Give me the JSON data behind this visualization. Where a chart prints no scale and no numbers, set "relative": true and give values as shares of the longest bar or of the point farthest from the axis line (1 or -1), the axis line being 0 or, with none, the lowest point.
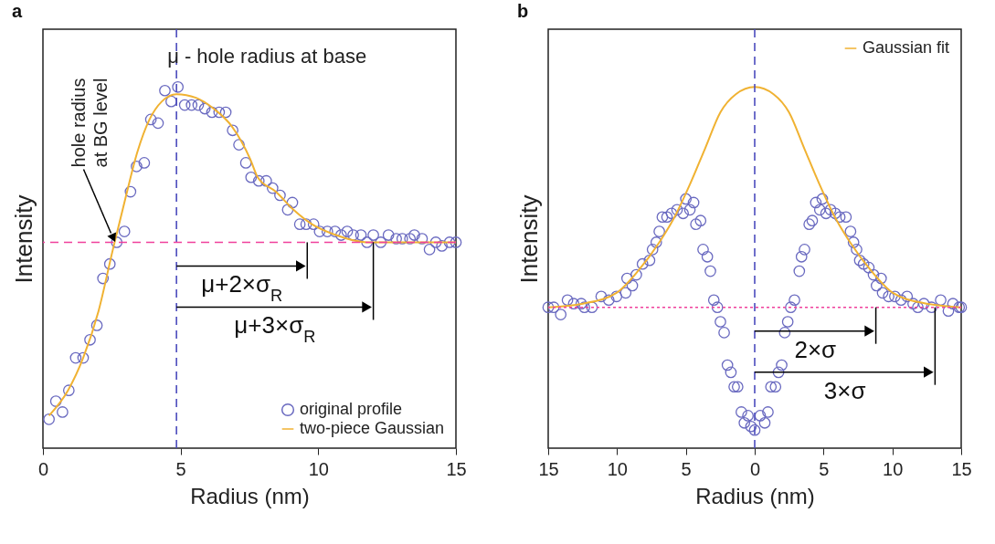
{
  "chart_data": [
    {
      "type": "scatter",
      "title": "a",
      "xlabel": "Radius (nm)",
      "ylabel": "Intensity",
      "relative": true,
      "tick_labels": "x",
      "grid": false,
      "legend": "bottom right",
      "xlim": [
        0,
        15
      ],
      "xticks": [
        0,
        5,
        10,
        15
      ],
      "series": [
        {
          "name": "original profile",
          "marker": "circle",
          "color": "#6a6ac0",
          "x": [
            0.22,
            0.47,
            0.71,
            0.94,
            1.19,
            1.46,
            1.71,
            1.96,
            2.18,
            2.43,
            2.68,
            2.96,
            3.18,
            3.4,
            3.68,
            3.92,
            4.18,
            4.43,
            4.66,
            4.9,
            5.15,
            5.4,
            5.64,
            5.88,
            6.14,
            6.4,
            6.64,
            6.89,
            7.12,
            7.37,
            7.56,
            7.84,
            8.11,
            8.34,
            8.61,
            8.89,
            9.06,
            9.33,
            9.56,
            9.83,
            10.05,
            10.33,
            10.61,
            10.83,
            11.05,
            11.27,
            11.55,
            11.77,
            12.0,
            12.27,
            12.55,
            12.83,
            13.05,
            13.33,
            13.49,
            13.77,
            14.04,
            14.27,
            14.49,
            14.77,
            15.0
          ],
          "values": [
            0.08,
            0.13,
            0.1,
            0.16,
            0.25,
            0.25,
            0.3,
            0.34,
            0.47,
            0.51,
            0.57,
            0.6,
            0.71,
            0.78,
            0.79,
            0.91,
            0.9,
            0.99,
            0.96,
            1.0,
            0.95,
            0.95,
            0.95,
            0.94,
            0.93,
            0.93,
            0.93,
            0.88,
            0.84,
            0.79,
            0.75,
            0.74,
            0.74,
            0.72,
            0.7,
            0.66,
            0.68,
            0.62,
            0.62,
            0.62,
            0.6,
            0.6,
            0.6,
            0.59,
            0.6,
            0.59,
            0.59,
            0.57,
            0.59,
            0.57,
            0.59,
            0.58,
            0.58,
            0.58,
            0.59,
            0.58,
            0.55,
            0.57,
            0.56,
            0.57,
            0.57
          ]
        },
        {
          "name": "two-piece Gaussian",
          "type": "line",
          "color": "#f0b232",
          "line_style": "solid",
          "x": [
            0.22,
            0.91,
            1.46,
            2.02,
            2.54,
            2.99,
            3.43,
            3.87,
            4.32,
            4.85,
            5.56,
            6.2,
            6.87,
            7.53,
            7.8,
            8.46,
            9.1,
            9.77,
            10.64,
            11.75,
            12.85,
            15
          ],
          "values": [
            0.09,
            0.16,
            0.25,
            0.38,
            0.55,
            0.69,
            0.82,
            0.91,
            0.96,
            0.98,
            0.97,
            0.94,
            0.89,
            0.8,
            0.75,
            0.71,
            0.66,
            0.62,
            0.59,
            0.57,
            0.57,
            0.57
          ]
        }
      ],
      "ref_lines": [
        {
          "axis": "x",
          "value": 4.85,
          "label": "μ - hole radius at base",
          "color": "#4b4bbd",
          "line_style": "dashed"
        },
        {
          "axis": "y",
          "value": 0.57,
          "color": "#f0409c",
          "line_style": "dashed"
        },
        {
          "axis": "x",
          "value": 9.6,
          "label": "μ+2×σ$_{R}$",
          "color": "#000000",
          "line_style": "solid"
        },
        {
          "axis": "x",
          "value": 12.0,
          "label": "μ+3×σ$_{R}$",
          "color": "#000000",
          "line_style": "solid"
        }
      ],
      "annotations": [
        "hole radius\nat BG level"
      ]
    },
    {
      "type": "scatter",
      "title": "b",
      "xlabel": "Radius (nm)",
      "ylabel": "Intensity",
      "relative": true,
      "tick_labels": "x",
      "grid": false,
      "legend": "top right",
      "xlim": [
        -15,
        15
      ],
      "xticks": [
        {
          "value": -15,
          "label": "15"
        },
        {
          "value": -10,
          "label": "10"
        },
        {
          "value": -5,
          "label": "5"
        },
        0,
        5,
        10,
        15
      ],
      "series": [
        {
          "marker": "circle",
          "color": "#6a6ac0",
          "x": [
            -15,
            -14.6,
            -14.09,
            -13.6,
            -13.15,
            -12.6,
            -12.37,
            -11.82,
            -11.15,
            -10.6,
            -10.04,
            -9.37,
            -9.27,
            -8.89,
            -8.6,
            -8.15,
            -7.64,
            -7.42,
            -7.15,
            -6.93,
            -6.71,
            -6.37,
            -6.04,
            -5.64,
            -5.2,
            -5.0,
            -4.71,
            -4.44,
            -4.27,
            -3.93,
            -3.75,
            -3.44,
            -3.22,
            -2.97,
            -2.71,
            -2.49,
            -2.22,
            -1.98,
            -1.73,
            -1.49,
            -1.24,
            -0.97,
            -0.75,
            -0.49,
            -0.27,
            0,
            0.4,
            0.73,
            0.96,
            1.18,
            1.51,
            1.73,
            1.96,
            2.18,
            2.4,
            2.62,
            2.89,
            3.24,
            3.4,
            3.62,
            3.96,
            4.18,
            4.44,
            4.73,
            4.91,
            5.18,
            5.51,
            5.85,
            6.18,
            6.63,
            6.96,
            7.18,
            7.4,
            7.63,
            7.91,
            8.29,
            8.63,
            8.85,
            9.18,
            9.29,
            9.73,
            10.18,
            10.63,
            11.07,
            11.51,
            11.85,
            12.29,
            12.85,
            13.51,
            14.07,
            14.4,
            14.85,
            15
          ],
          "values": [
            0.39,
            0.39,
            0.37,
            0.41,
            0.4,
            0.4,
            0.39,
            0.39,
            0.42,
            0.41,
            0.42,
            0.43,
            0.47,
            0.45,
            0.48,
            0.51,
            0.52,
            0.55,
            0.57,
            0.6,
            0.64,
            0.64,
            0.65,
            0.66,
            0.65,
            0.69,
            0.66,
            0.68,
            0.62,
            0.63,
            0.55,
            0.53,
            0.49,
            0.41,
            0.39,
            0.35,
            0.32,
            0.23,
            0.21,
            0.17,
            0.17,
            0.1,
            0.07,
            0.09,
            0.06,
            0.05,
            0.09,
            0.07,
            0.1,
            0.17,
            0.17,
            0.21,
            0.23,
            0.32,
            0.35,
            0.39,
            0.41,
            0.49,
            0.53,
            0.55,
            0.62,
            0.63,
            0.68,
            0.66,
            0.69,
            0.65,
            0.66,
            0.65,
            0.64,
            0.64,
            0.6,
            0.57,
            0.55,
            0.52,
            0.51,
            0.5,
            0.48,
            0.45,
            0.47,
            0.43,
            0.42,
            0.42,
            0.41,
            0.42,
            0.4,
            0.39,
            0.4,
            0.39,
            0.41,
            0.38,
            0.4,
            0.39,
            0.39
          ]
        },
        {
          "name": "Gaussian fit",
          "type": "line",
          "color": "#f0b232",
          "line_style": "solid",
          "x": [
            -15,
            -12.49,
            -10.04,
            -8.49,
            -6.93,
            -5.82,
            -4.71,
            -3.6,
            -2.49,
            -1.37,
            0,
            1.37,
            2.49,
            3.6,
            4.71,
            5.82,
            6.93,
            8.49,
            10.04,
            12.49,
            15
          ],
          "values": [
            0.39,
            0.4,
            0.43,
            0.49,
            0.57,
            0.64,
            0.73,
            0.83,
            0.93,
            0.98,
            1,
            0.98,
            0.93,
            0.83,
            0.73,
            0.64,
            0.57,
            0.49,
            0.43,
            0.4,
            0.39
          ]
        }
      ],
      "ref_lines": [
        {
          "axis": "x",
          "value": 0,
          "color": "#4b4bbd",
          "line_style": "dashed"
        },
        {
          "axis": "y",
          "value": 0.39,
          "color": "#f0409c",
          "line_style": "dotted"
        },
        {
          "axis": "x",
          "value": 8.8,
          "label": "2×σ",
          "color": "#000000",
          "line_style": "solid"
        },
        {
          "axis": "x",
          "value": 13.1,
          "label": "3×σ",
          "color": "#000000",
          "line_style": "solid"
        }
      ]
    }
  ]
}
